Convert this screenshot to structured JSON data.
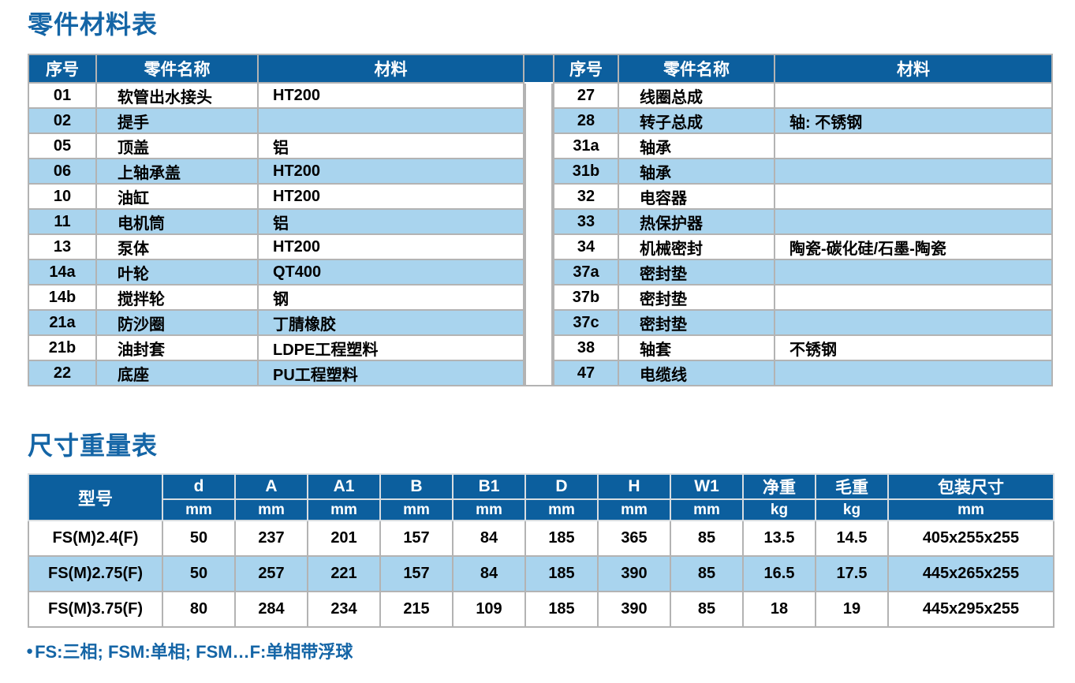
{
  "page": {
    "title1": "零件材料表",
    "title2": "尺寸重量表",
    "footnote_bullet": "●",
    "footnote": "FS:三相; FSM:单相; FSM…F:单相带浮球"
  },
  "colors": {
    "header_blue": "#0c5f9e",
    "row_blue": "#a9d4ee",
    "title_blue": "#1465a6",
    "border_gray": "#b3b3b3"
  },
  "parts_table": {
    "headers": [
      "序号",
      "零件名称",
      "材料"
    ],
    "left_rows": [
      {
        "num": "01",
        "name": "软管出水接头",
        "material": "HT200"
      },
      {
        "num": "02",
        "name": "提手",
        "material": ""
      },
      {
        "num": "05",
        "name": "顶盖",
        "material": "铝"
      },
      {
        "num": "06",
        "name": "上轴承盖",
        "material": "HT200"
      },
      {
        "num": "10",
        "name": "油缸",
        "material": "HT200"
      },
      {
        "num": "11",
        "name": "电机筒",
        "material": "铝"
      },
      {
        "num": "13",
        "name": "泵体",
        "material": "HT200"
      },
      {
        "num": "14a",
        "name": "叶轮",
        "material": "QT400"
      },
      {
        "num": "14b",
        "name": "搅拌轮",
        "material": "钢"
      },
      {
        "num": "21a",
        "name": "防沙圈",
        "material": "丁腈橡胶"
      },
      {
        "num": "21b",
        "name": "油封套",
        "material": "LDPE工程塑料"
      },
      {
        "num": "22",
        "name": "底座",
        "material": "PU工程塑料"
      }
    ],
    "right_rows": [
      {
        "num": "27",
        "name": "线圈总成",
        "material": ""
      },
      {
        "num": "28",
        "name": "转子总成",
        "material": "轴: 不锈钢"
      },
      {
        "num": "31a",
        "name": "轴承",
        "material": ""
      },
      {
        "num": "31b",
        "name": "轴承",
        "material": ""
      },
      {
        "num": "32",
        "name": "电容器",
        "material": ""
      },
      {
        "num": "33",
        "name": "热保护器",
        "material": ""
      },
      {
        "num": "34",
        "name": "机械密封",
        "material": "陶瓷-碳化硅/石墨-陶瓷"
      },
      {
        "num": "37a",
        "name": "密封垫",
        "material": ""
      },
      {
        "num": "37b",
        "name": "密封垫",
        "material": ""
      },
      {
        "num": "37c",
        "name": "密封垫",
        "material": ""
      },
      {
        "num": "38",
        "name": "轴套",
        "material": "不锈钢"
      },
      {
        "num": "47",
        "name": "电缆线",
        "material": ""
      }
    ]
  },
  "dimension_table": {
    "model_header": "型号",
    "columns": [
      {
        "label": "d",
        "unit": "mm"
      },
      {
        "label": "A",
        "unit": "mm"
      },
      {
        "label": "A1",
        "unit": "mm"
      },
      {
        "label": "B",
        "unit": "mm"
      },
      {
        "label": "B1",
        "unit": "mm"
      },
      {
        "label": "D",
        "unit": "mm"
      },
      {
        "label": "H",
        "unit": "mm"
      },
      {
        "label": "W1",
        "unit": "mm"
      },
      {
        "label": "净重",
        "unit": "kg"
      },
      {
        "label": "毛重",
        "unit": "kg"
      },
      {
        "label": "包装尺寸",
        "unit": "mm"
      }
    ],
    "rows": [
      {
        "model": "FS(M)2.4(F)",
        "values": [
          "50",
          "237",
          "201",
          "157",
          "84",
          "185",
          "365",
          "85",
          "13.5",
          "14.5",
          "405x255x255"
        ]
      },
      {
        "model": "FS(M)2.75(F)",
        "values": [
          "50",
          "257",
          "221",
          "157",
          "84",
          "185",
          "390",
          "85",
          "16.5",
          "17.5",
          "445x265x255"
        ]
      },
      {
        "model": "FS(M)3.75(F)",
        "values": [
          "80",
          "284",
          "234",
          "215",
          "109",
          "185",
          "390",
          "85",
          "18",
          "19",
          "445x295x255"
        ]
      }
    ]
  }
}
